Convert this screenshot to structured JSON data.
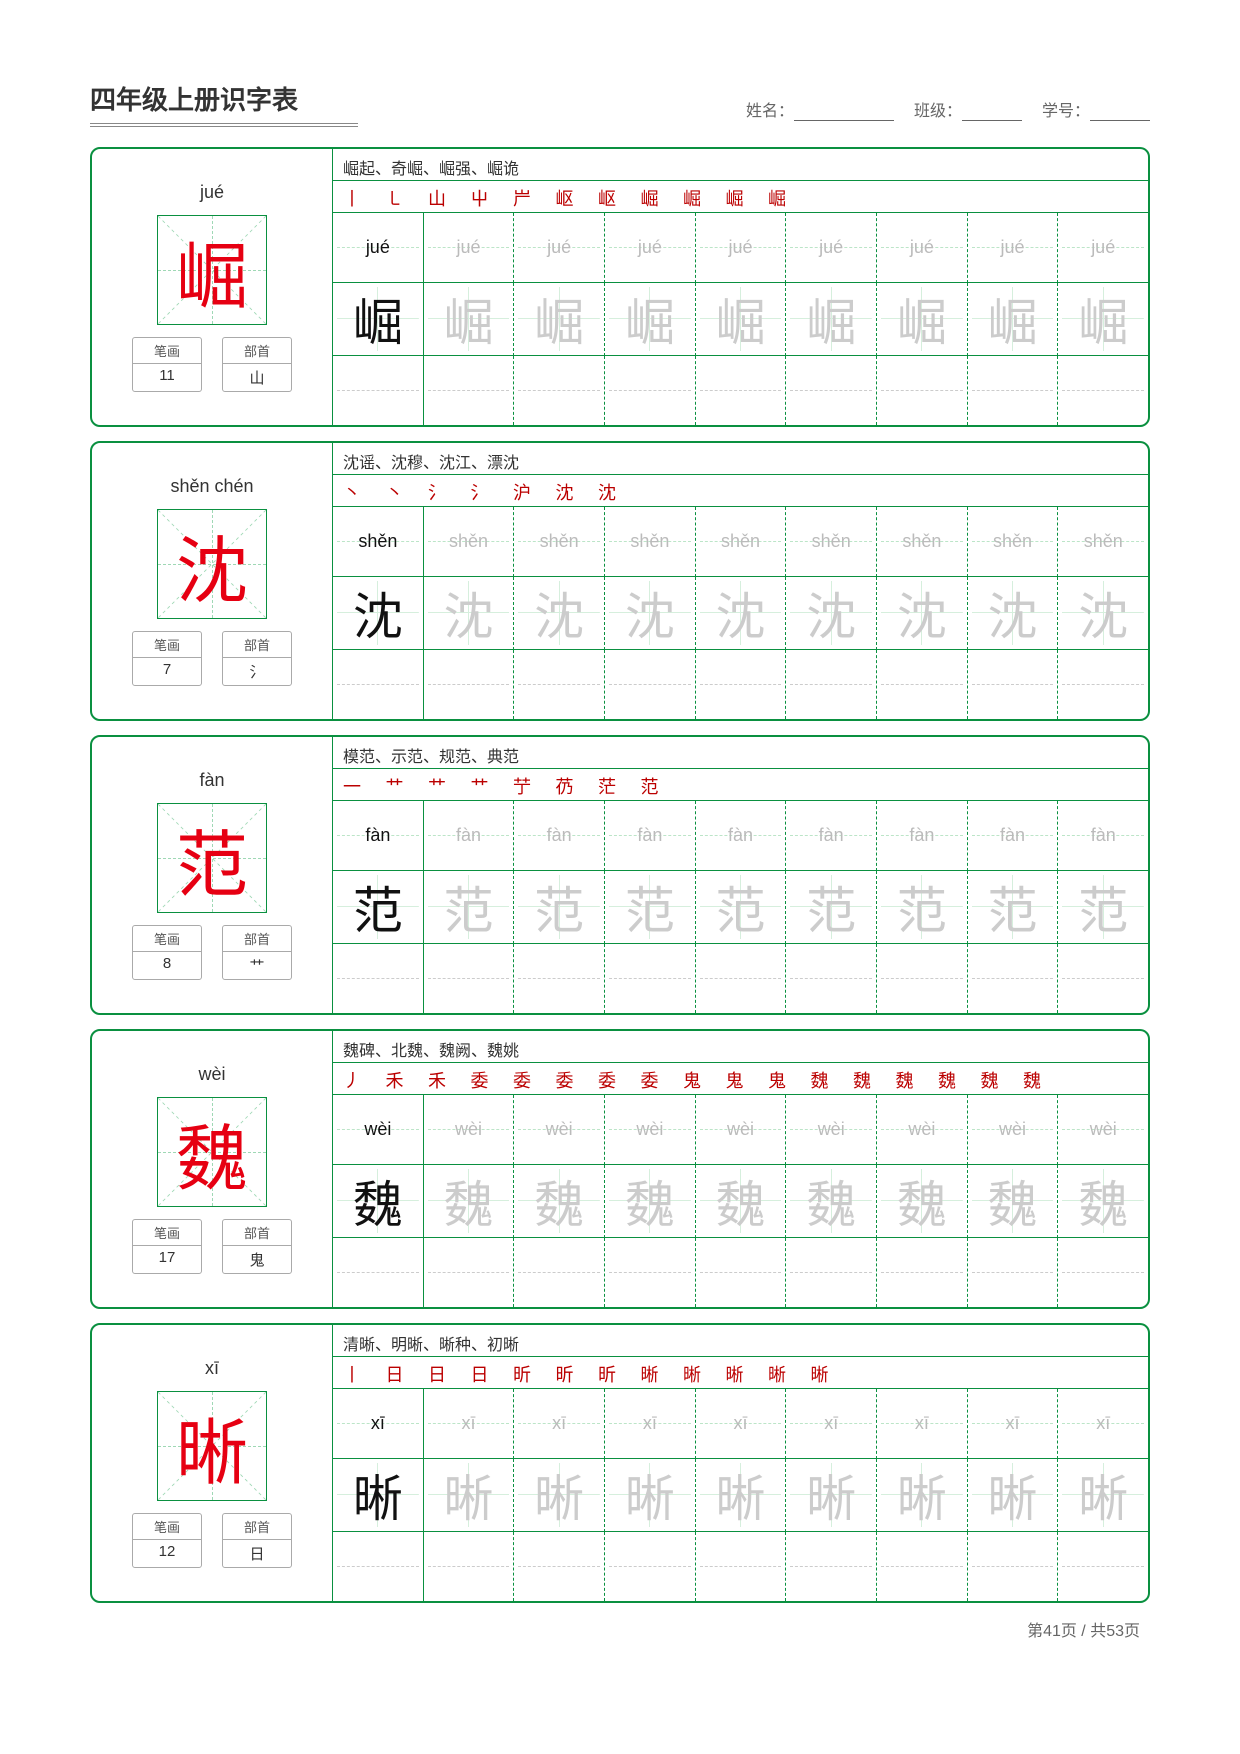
{
  "title": "四年级上册识字表",
  "fields": {
    "name_label": "姓名：",
    "class_label": "班级：",
    "id_label": "学号："
  },
  "labels": {
    "strokes": "笔画",
    "radical": "部首"
  },
  "footer": "第41页 / 共53页",
  "practice_cols": 9,
  "characters": [
    {
      "pinyin": "jué",
      "char": "崛",
      "stroke_count": "11",
      "radical": "山",
      "words": "崛起、奇崛、崛强、崛诡",
      "stroke_seq": "丨 ㇄ 山 屮 屵 岖 岖 崛 崛 崛 崛"
    },
    {
      "pinyin": "shěn   chén",
      "pinyin_cell": "shěn",
      "char": "沈",
      "stroke_count": "7",
      "radical": "氵",
      "words": "沈谣、沈穆、沈江、漂沈",
      "stroke_seq": "丶 丶 氵 氵 沪 沈 沈"
    },
    {
      "pinyin": "fàn",
      "char": "范",
      "stroke_count": "8",
      "radical": "艹",
      "words": "模范、示范、规范、典范",
      "stroke_seq": "一 艹 艹 艹 艼 芿 茫 范"
    },
    {
      "pinyin": "wèi",
      "char": "魏",
      "stroke_count": "17",
      "radical": "鬼",
      "words": "魏碑、北魏、魏阙、魏姚",
      "stroke_seq": "丿 禾 禾 委 委 委 委 委 鬼 鬼 鬼 魏 魏 魏 魏 魏 魏"
    },
    {
      "pinyin": "xī",
      "char": "晰",
      "stroke_count": "12",
      "radical": "日",
      "words": "清晰、明晰、晰种、初晰",
      "stroke_seq": "丨 日 日 日 昕 昕 昕 晰 晰 晰 晰 晰"
    }
  ]
}
